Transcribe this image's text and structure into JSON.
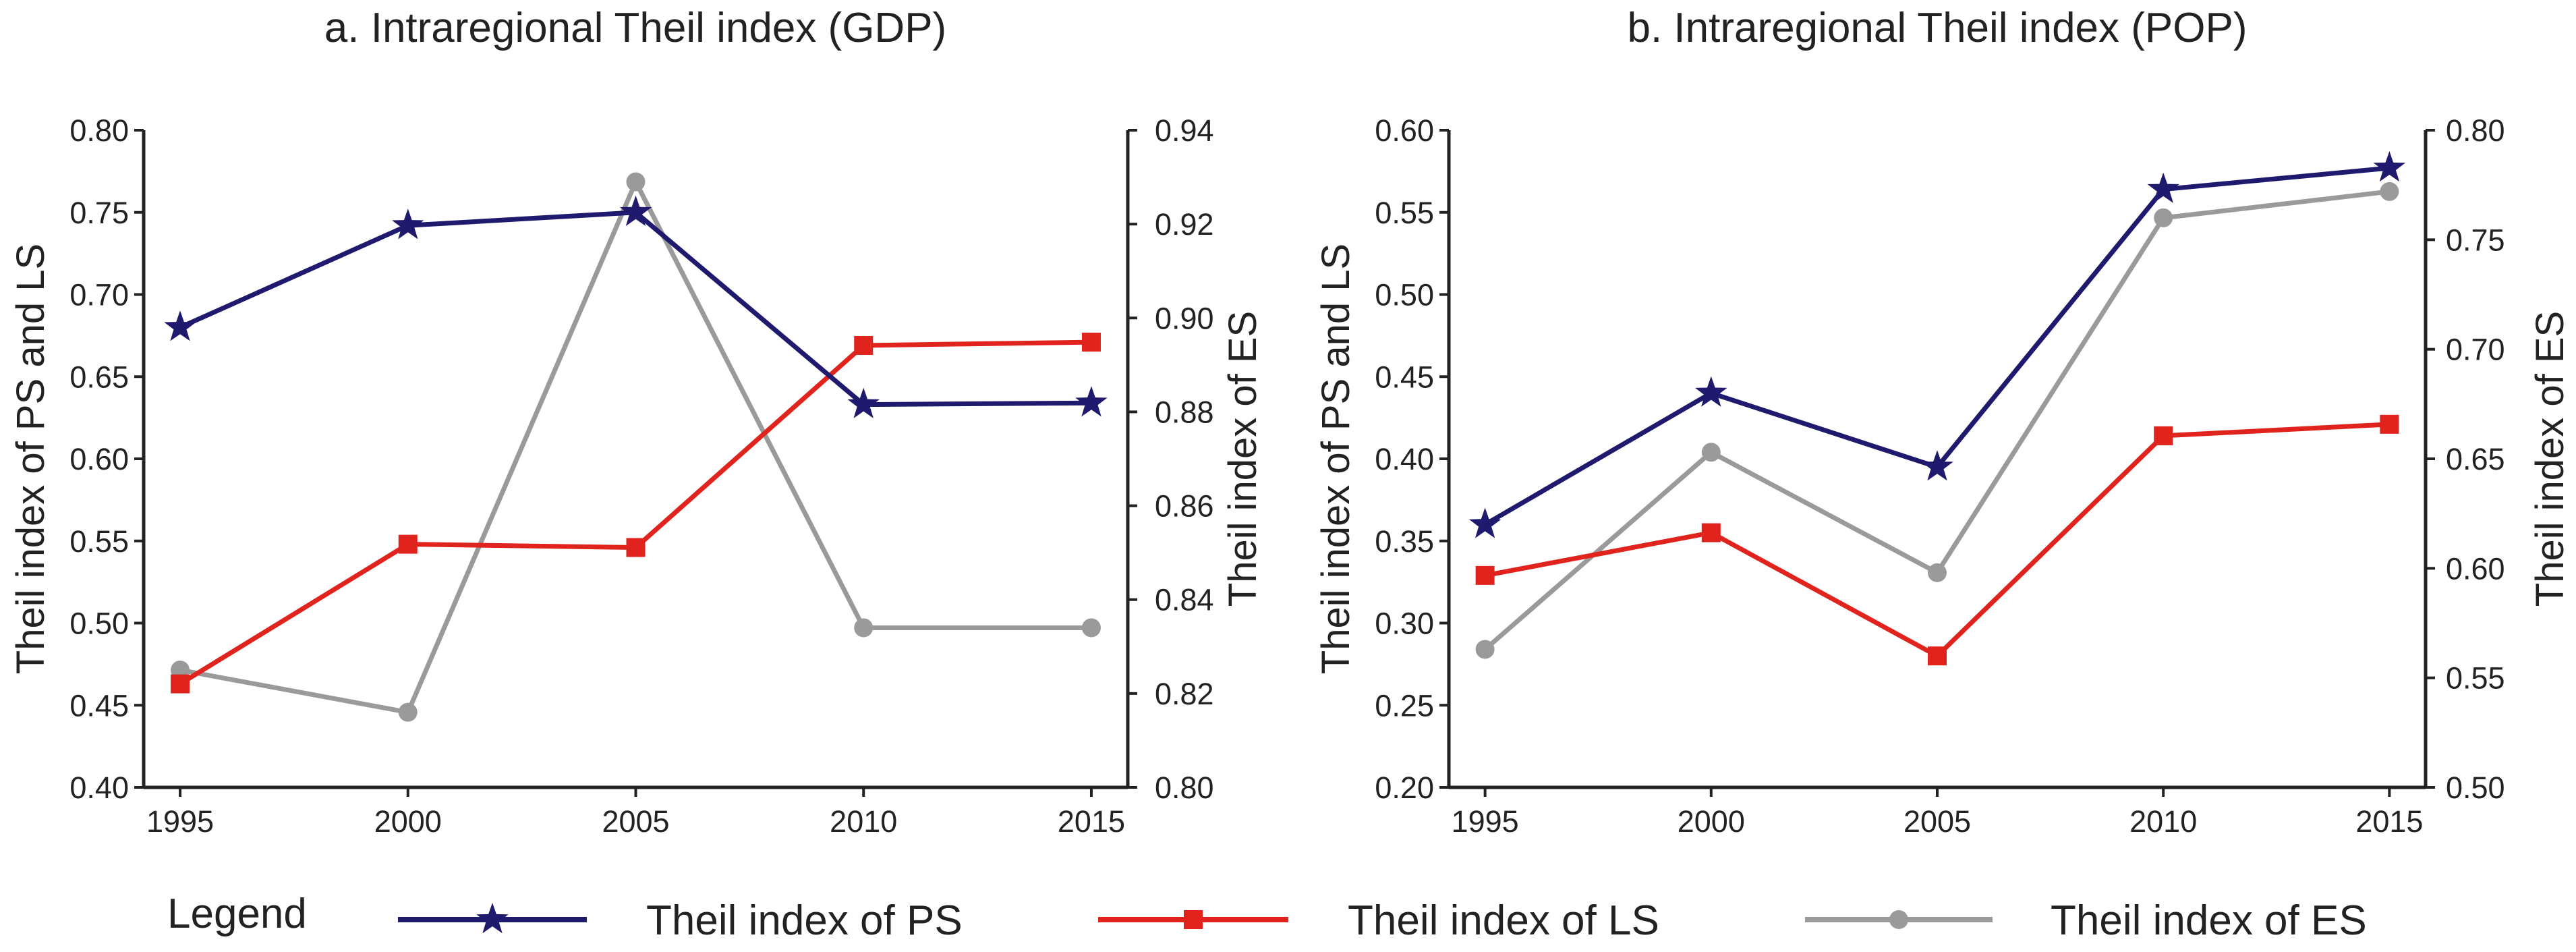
{
  "legend": {
    "title": "Legend",
    "items": [
      {
        "series": "PS",
        "label": "Theil index of PS",
        "color": "#1f1a6e",
        "marker": "star"
      },
      {
        "series": "LS",
        "label": "Theil index of LS",
        "color": "#e0231c",
        "marker": "square"
      },
      {
        "series": "ES",
        "label": "Theil index of ES",
        "color": "#9a9a9a",
        "marker": "circle"
      }
    ]
  },
  "chart_data": [
    {
      "type": "line",
      "title": "a. Intraregional Theil index (GDP)",
      "x": [
        1995,
        2000,
        2005,
        2010,
        2015
      ],
      "xticks": [
        "1995",
        "2000",
        "2005",
        "2010",
        "2015"
      ],
      "xlim": [
        1994.2,
        2015.8
      ],
      "ylabel": "Theil index of PS and LS",
      "ylim": [
        0.4,
        0.8
      ],
      "yticks": [
        "0.40",
        "0.45",
        "0.50",
        "0.55",
        "0.60",
        "0.65",
        "0.70",
        "0.75",
        "0.80"
      ],
      "y2label": "Theil index of ES",
      "y2lim": [
        0.8,
        0.94
      ],
      "y2ticks": [
        "0.80",
        "0.82",
        "0.84",
        "0.86",
        "0.88",
        "0.90",
        "0.92",
        "0.94"
      ],
      "series": [
        {
          "name": "Theil index of PS",
          "axis": "left",
          "values": [
            0.68,
            0.742,
            0.75,
            0.633,
            0.634
          ],
          "color": "#1f1a6e",
          "marker": "star"
        },
        {
          "name": "Theil index of LS",
          "axis": "left",
          "values": [
            0.463,
            0.548,
            0.546,
            0.669,
            0.671
          ],
          "color": "#e0231c",
          "marker": "square"
        },
        {
          "name": "Theil index of ES",
          "axis": "right",
          "values": [
            0.825,
            0.816,
            0.929,
            0.834,
            0.834
          ],
          "color": "#9a9a9a",
          "marker": "circle"
        }
      ]
    },
    {
      "type": "line",
      "title": "b. Intraregional Theil index (POP)",
      "x": [
        1995,
        2000,
        2005,
        2010,
        2015
      ],
      "xticks": [
        "1995",
        "2000",
        "2005",
        "2010",
        "2015"
      ],
      "xlim": [
        1994.2,
        2015.8
      ],
      "ylabel": "Theil index of PS and LS",
      "ylim": [
        0.2,
        0.6
      ],
      "yticks": [
        "0.20",
        "0.25",
        "0.30",
        "0.35",
        "0.40",
        "0.45",
        "0.50",
        "0.55",
        "0.60"
      ],
      "y2label": "Theil index of ES",
      "y2lim": [
        0.5,
        0.8
      ],
      "y2ticks": [
        "0.50",
        "0.55",
        "0.60",
        "0.65",
        "0.70",
        "0.75",
        "0.80"
      ],
      "series": [
        {
          "name": "Theil index of PS",
          "axis": "left",
          "values": [
            0.36,
            0.44,
            0.395,
            0.564,
            0.577
          ],
          "color": "#1f1a6e",
          "marker": "star"
        },
        {
          "name": "Theil index of LS",
          "axis": "left",
          "values": [
            0.329,
            0.355,
            0.28,
            0.414,
            0.421
          ],
          "color": "#e0231c",
          "marker": "square"
        },
        {
          "name": "Theil index of ES",
          "axis": "right",
          "values": [
            0.563,
            0.653,
            0.598,
            0.76,
            0.772
          ],
          "color": "#9a9a9a",
          "marker": "circle"
        }
      ]
    }
  ]
}
